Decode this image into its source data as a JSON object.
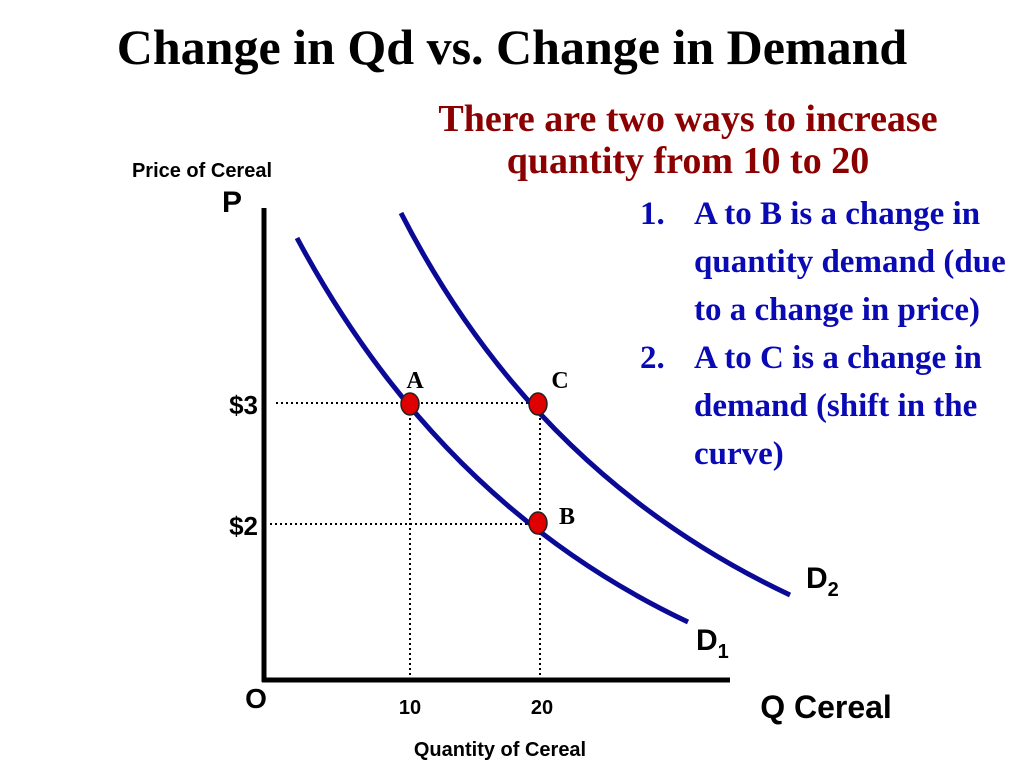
{
  "title": "Change in Qd vs. Change in Demand",
  "subtitle_lines": [
    "There are two ways to increase",
    "quantity from 10 to 20"
  ],
  "points": [
    {
      "num": "1.",
      "text": "A to B is a change in quantity demand (due to a change in price)"
    },
    {
      "num": "2.",
      "text": "A to C is a change in demand (shift in the curve)"
    }
  ],
  "colors": {
    "title": "#000000",
    "subtitle": "#8b0000",
    "points": "#0a0ab4",
    "curve": "#0a0a96",
    "marker": "#e00000"
  },
  "chart_data": {
    "type": "line",
    "ylabel": "Price of Cereal",
    "y_axis_symbol": "P",
    "xlabel": "Quantity of Cereal",
    "x_axis_symbol": "Q Cereal",
    "origin_label": "O",
    "x_ticks": [
      {
        "value": 10,
        "label": "10"
      },
      {
        "value": 20,
        "label": "20"
      }
    ],
    "y_ticks": [
      {
        "value": 3,
        "label": "$3"
      },
      {
        "value": 2,
        "label": "$2"
      }
    ],
    "series": [
      {
        "name": "D",
        "sub": "1"
      },
      {
        "name": "D",
        "sub": "2"
      }
    ],
    "points": [
      {
        "label": "A",
        "x": 10,
        "y": 3
      },
      {
        "label": "B",
        "x": 20,
        "y": 2
      },
      {
        "label": "C",
        "x": 20,
        "y": 3
      }
    ],
    "guides": "dotted"
  }
}
